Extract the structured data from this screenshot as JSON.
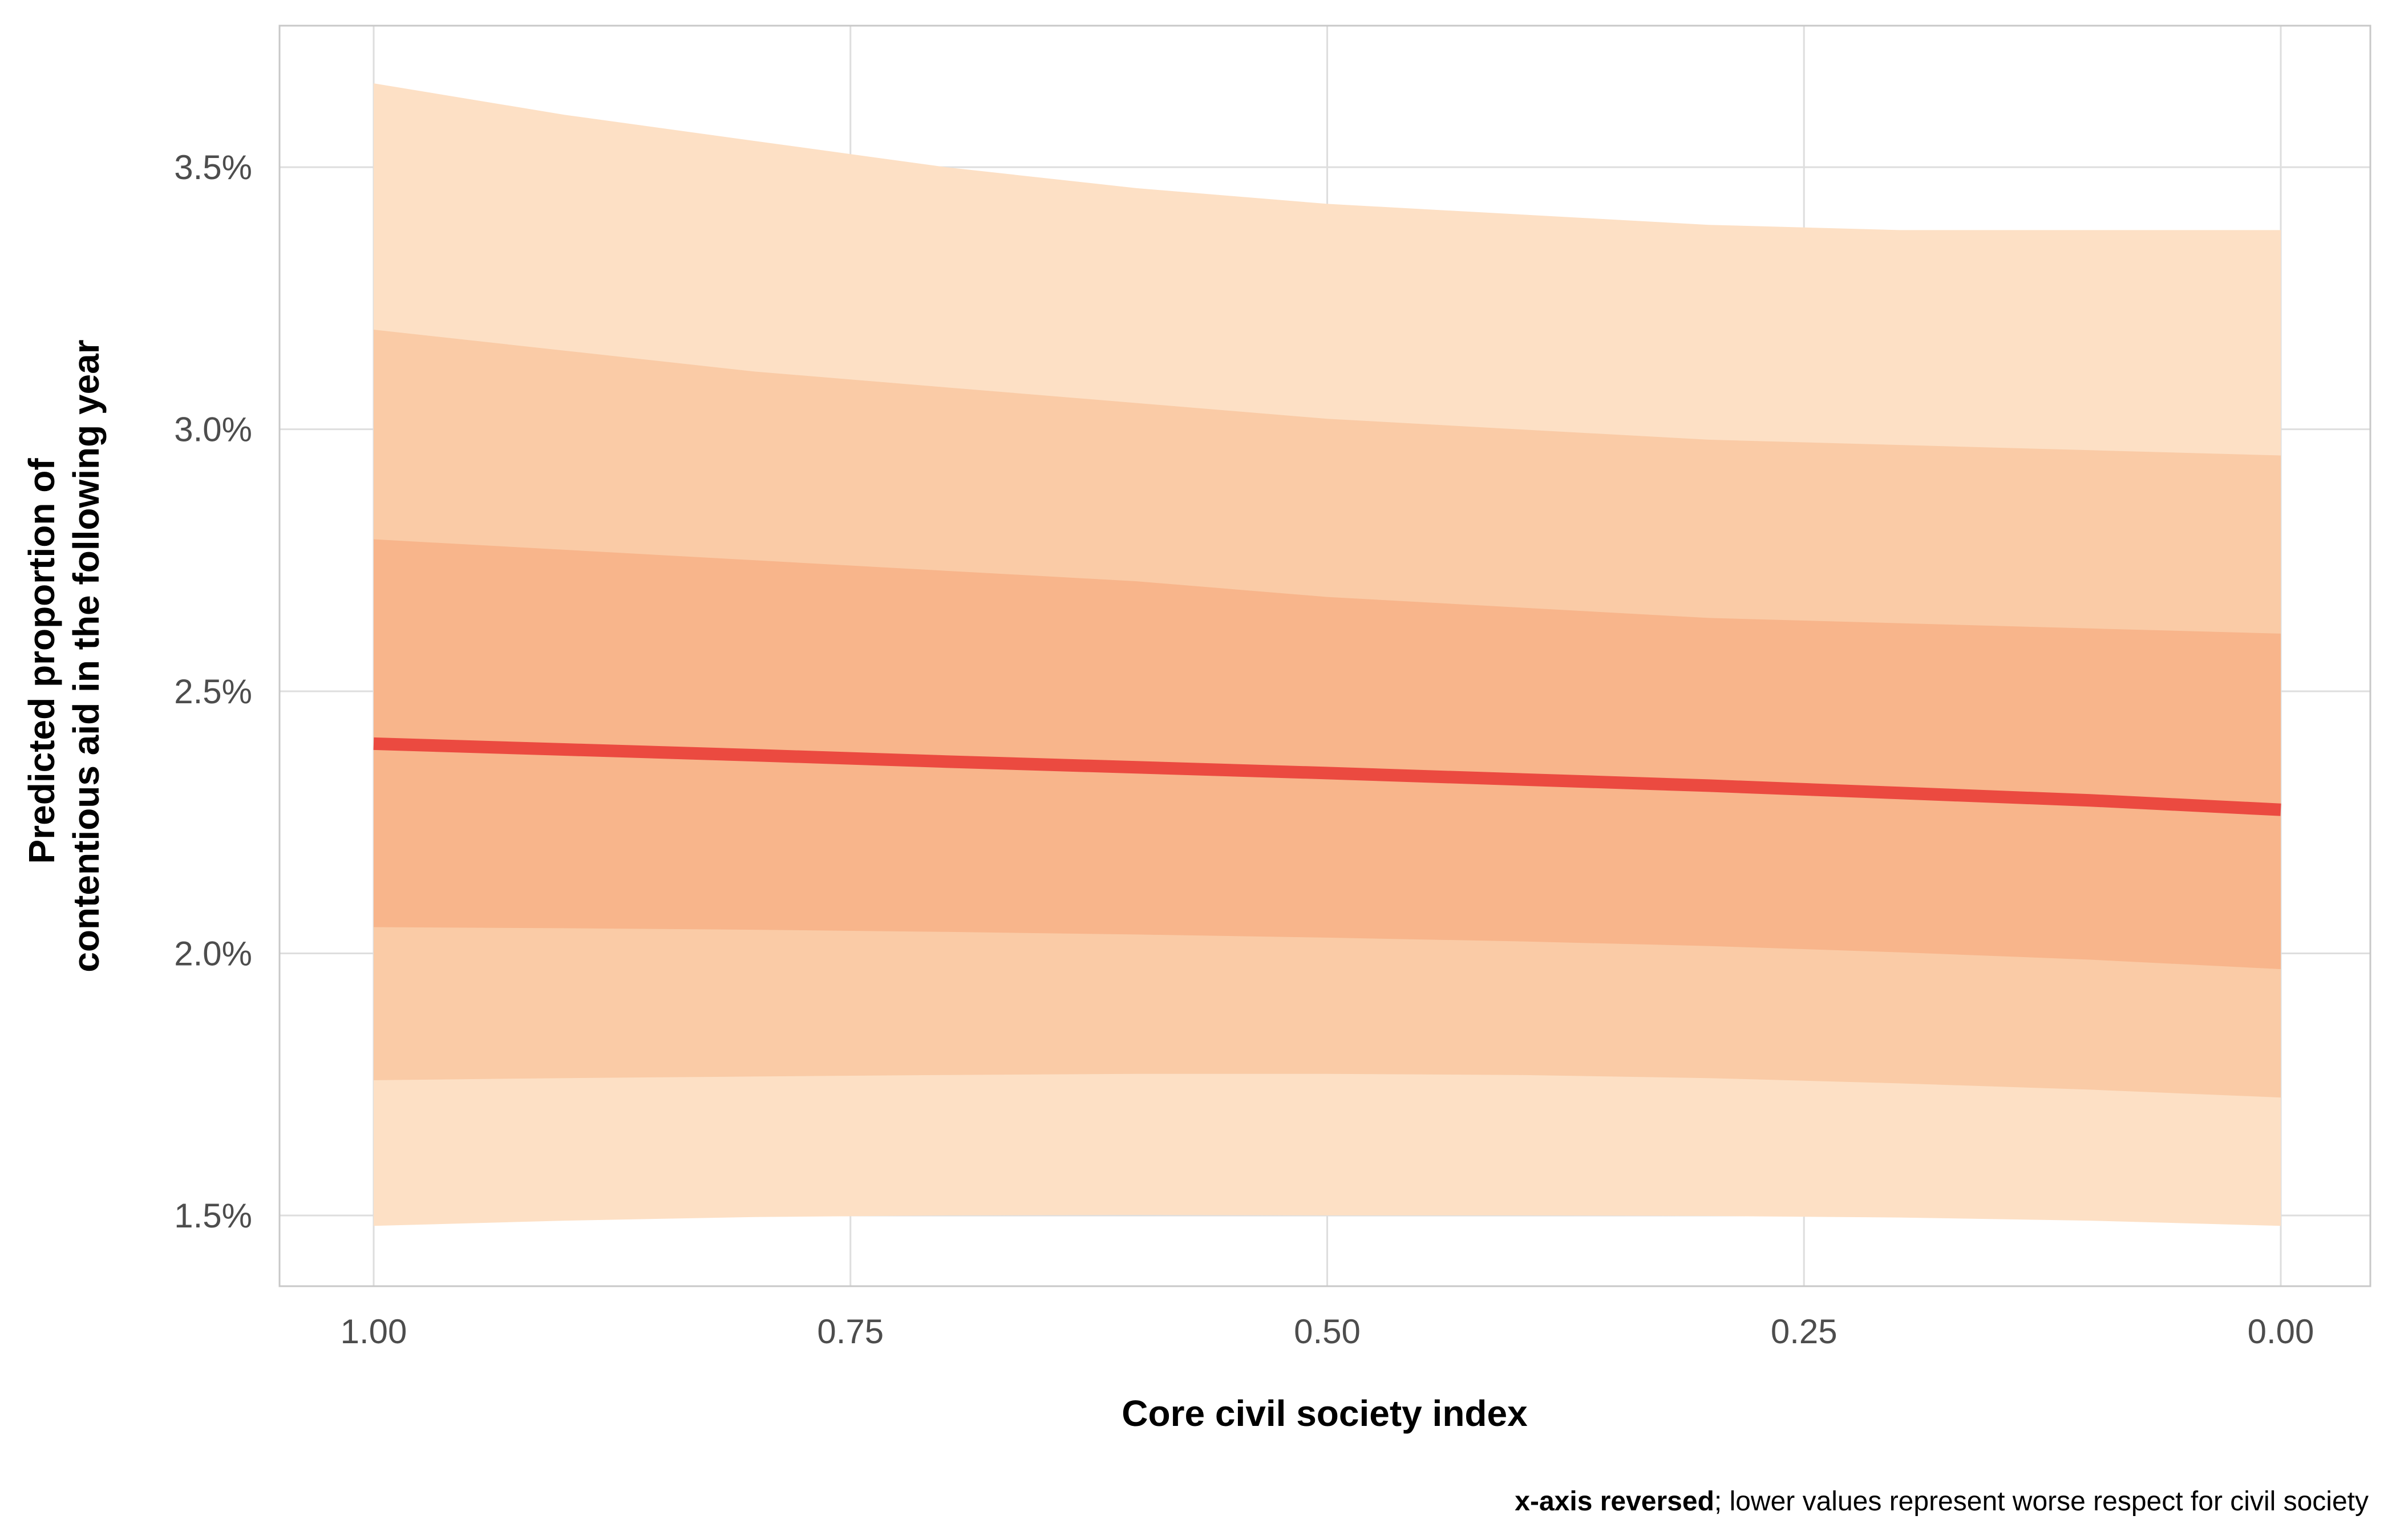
{
  "chart_data": {
    "type": "area",
    "xlabel": "Core civil society index",
    "ylabel": "Predicted proportion of\ncontentious aid in the following year",
    "ylabel_lines": [
      "Predicted proportion of",
      "contentious aid in the following year"
    ],
    "caption_bold": "x-axis reversed",
    "caption_rest": "; lower values represent worse respect for civil society",
    "x_reversed": true,
    "xlim": [
      1.0,
      0.0
    ],
    "ylim": [
      0.01365,
      0.0377
    ],
    "x_ticks": [
      1.0,
      0.75,
      0.5,
      0.25,
      0.0
    ],
    "x_tick_labels": [
      "1.00",
      "0.75",
      "0.50",
      "0.25",
      "0.00"
    ],
    "y_ticks": [
      0.015,
      0.02,
      0.025,
      0.03,
      0.035
    ],
    "y_tick_labels": [
      "1.5%",
      "2.0%",
      "2.5%",
      "3.0%",
      "3.5%"
    ],
    "grid": true,
    "x": [
      1.0,
      0.9,
      0.8,
      0.7,
      0.6,
      0.5,
      0.4,
      0.3,
      0.2,
      0.1,
      0.0
    ],
    "predicted": [
      0.024,
      0.02389,
      0.02378,
      0.02366,
      0.02355,
      0.02344,
      0.02332,
      0.0232,
      0.02306,
      0.02292,
      0.02274
    ],
    "bands": [
      {
        "level": "outer",
        "lower": [
          0.0148,
          0.0149,
          0.01497,
          0.015,
          0.01501,
          0.015,
          0.015,
          0.01499,
          0.01496,
          0.0149,
          0.0148
        ],
        "upper": [
          0.0366,
          0.036,
          0.0355,
          0.035,
          0.0346,
          0.0343,
          0.0341,
          0.0339,
          0.0338,
          0.0338,
          0.0338
        ]
      },
      {
        "level": "middle",
        "lower": [
          0.01758,
          0.01762,
          0.01765,
          0.01768,
          0.0177,
          0.0177,
          0.01768,
          0.01762,
          0.01752,
          0.0174,
          0.01725
        ],
        "upper": [
          0.0319,
          0.0315,
          0.0311,
          0.0308,
          0.0305,
          0.0302,
          0.03,
          0.0298,
          0.0297,
          0.0296,
          0.0295
        ]
      },
      {
        "level": "inner",
        "lower": [
          0.0205,
          0.02048,
          0.02045,
          0.02041,
          0.02036,
          0.0203,
          0.02023,
          0.02014,
          0.02002,
          0.01988,
          0.0197
        ],
        "upper": [
          0.0279,
          0.0277,
          0.0275,
          0.0273,
          0.0271,
          0.0268,
          0.0266,
          0.0264,
          0.0263,
          0.0262,
          0.0261
        ]
      }
    ],
    "colors": {
      "outer": "#fde0c5",
      "middle": "#facba6",
      "inner": "#f8b58b",
      "line": "#eb4a40"
    }
  }
}
